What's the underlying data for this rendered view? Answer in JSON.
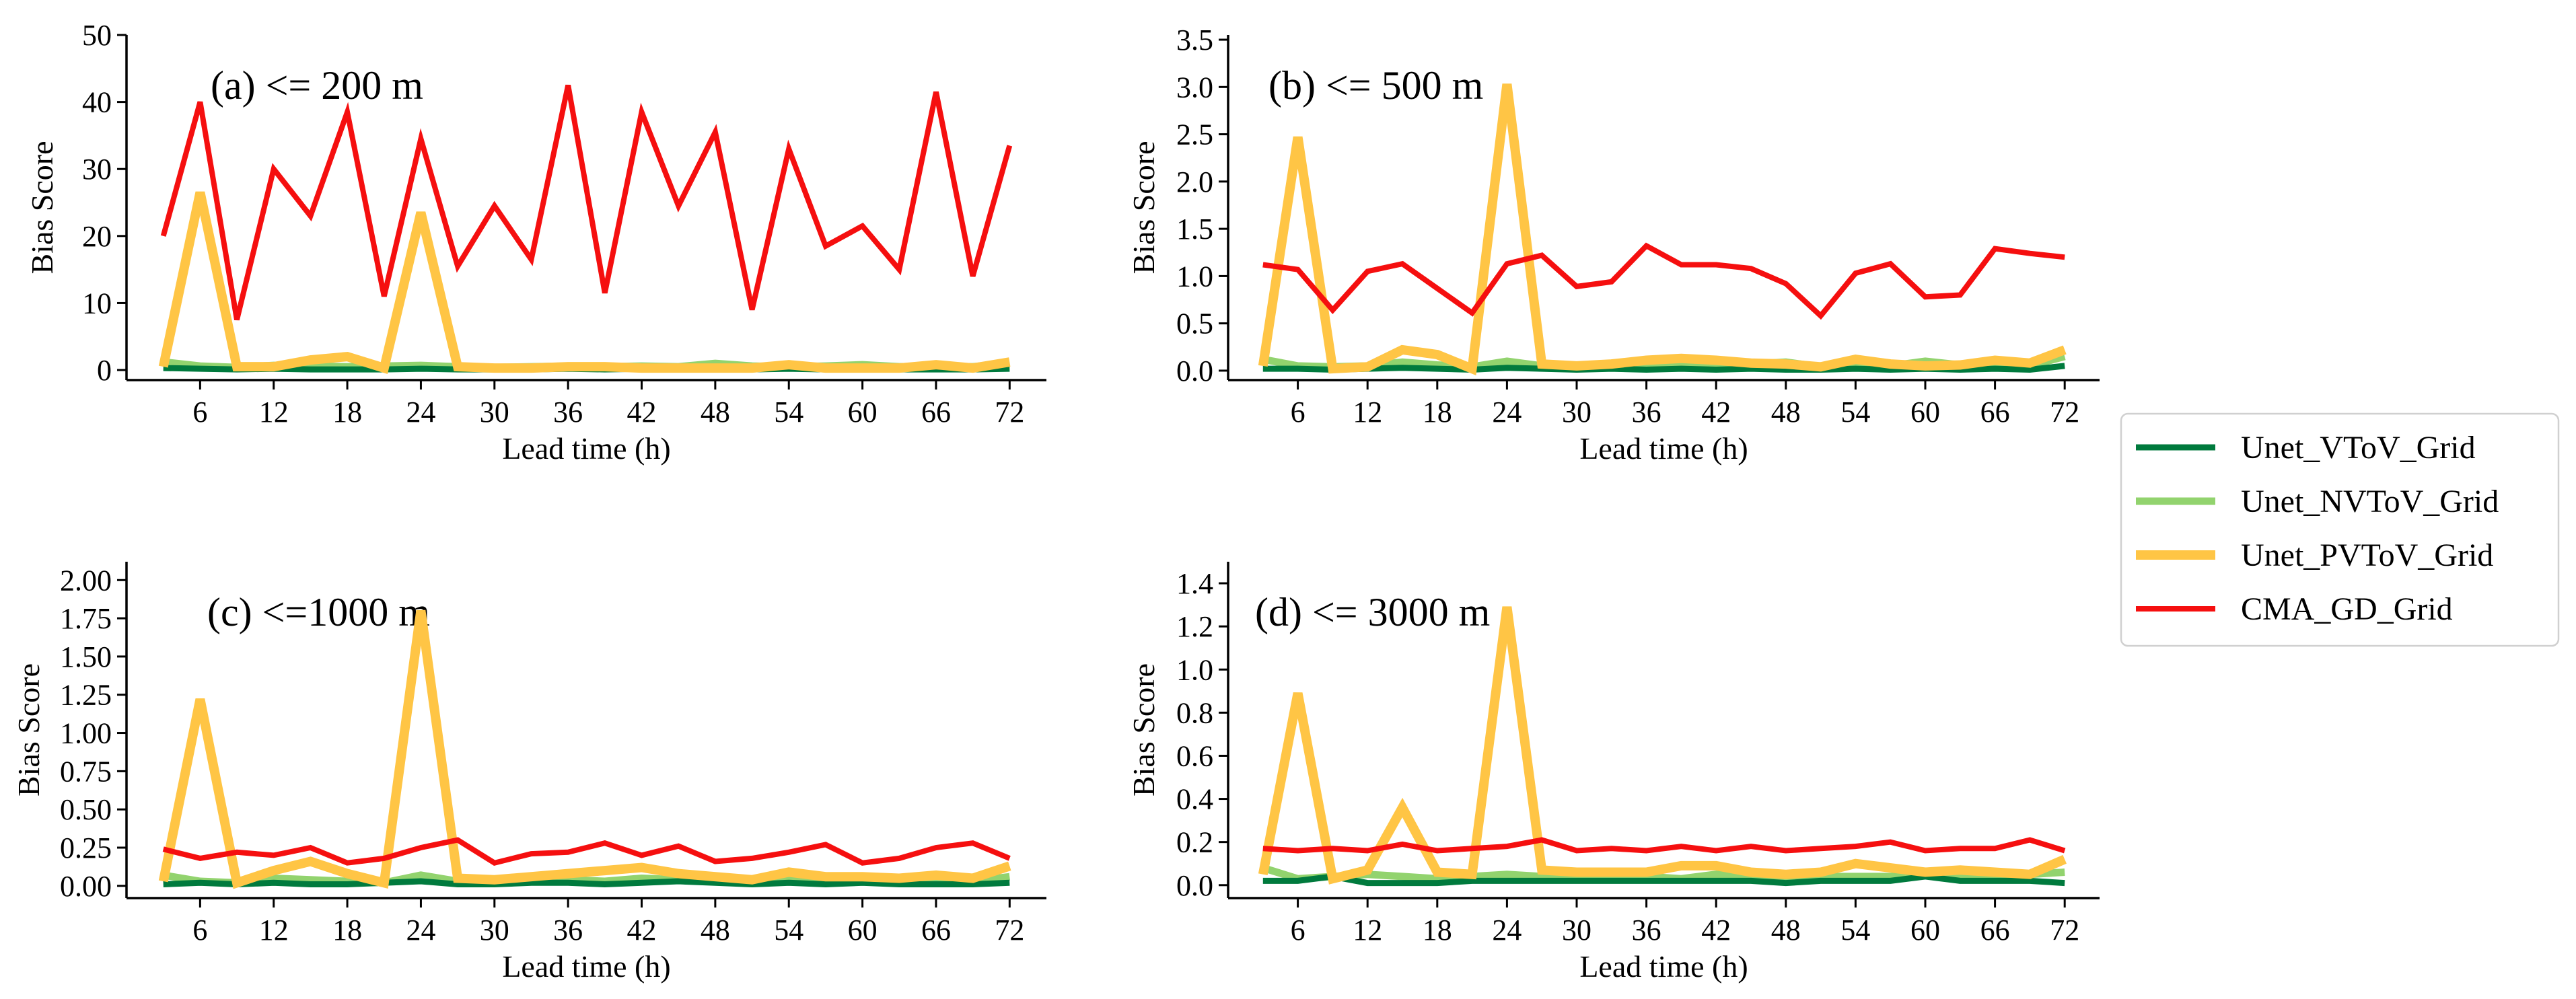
{
  "chart_data": [
    {
      "type": "line",
      "title": "(a) <= 200 m",
      "xlabel": "Lead time (h)",
      "ylabel": "Bias Score",
      "x": [
        3,
        6,
        9,
        12,
        15,
        18,
        21,
        24,
        27,
        30,
        33,
        36,
        39,
        42,
        45,
        48,
        51,
        54,
        57,
        60,
        63,
        66,
        69,
        72
      ],
      "xlim": [
        0,
        75
      ],
      "ylim": [
        -1.5,
        50
      ],
      "xticks": [
        "6",
        "12",
        "18",
        "24",
        "30",
        "36",
        "42",
        "48",
        "54",
        "60",
        "66",
        "72"
      ],
      "yticks": [
        "0",
        "10",
        "20",
        "30",
        "40",
        "50"
      ],
      "series": [
        {
          "name": "Unet_VToV_Grid",
          "values": [
            0.3,
            0.2,
            0.1,
            0.2,
            0.1,
            0.1,
            0.1,
            0.2,
            0.1,
            0.1,
            0.1,
            0.2,
            0.1,
            0.2,
            0.1,
            0.1,
            0.1,
            0.2,
            0.1,
            0.1,
            0.1,
            0.1,
            0.1,
            0.2
          ]
        },
        {
          "name": "Unet_NVToV_Grid",
          "values": [
            1.2,
            0.6,
            0.4,
            0.7,
            0.6,
            0.5,
            0.6,
            0.7,
            0.5,
            0.4,
            0.5,
            0.6,
            0.5,
            0.6,
            0.5,
            1.0,
            0.6,
            0.5,
            0.6,
            0.8,
            0.5,
            0.6,
            0.5,
            1.0
          ]
        },
        {
          "name": "Unet_PVToV_Grid",
          "values": [
            0.5,
            26.5,
            0.5,
            0.5,
            1.5,
            2.0,
            0.3,
            23.5,
            0.5,
            0.3,
            0.3,
            0.5,
            0.5,
            0.3,
            0.3,
            0.3,
            0.3,
            0.8,
            0.3,
            0.3,
            0.3,
            0.8,
            0.3,
            1.2
          ]
        },
        {
          "name": "CMA_GD_Grid",
          "values": [
            20,
            40,
            7.5,
            30,
            23,
            38.5,
            11,
            34.5,
            15.5,
            24.5,
            16.5,
            42.5,
            11.5,
            38.5,
            24.5,
            35.5,
            9,
            33,
            18.5,
            21.5,
            15,
            41.5,
            14,
            33.5
          ]
        }
      ]
    },
    {
      "type": "line",
      "title": "(b) <= 500 m",
      "xlabel": "Lead time (h)",
      "ylabel": "Bias Score",
      "x": [
        3,
        6,
        9,
        12,
        15,
        18,
        21,
        24,
        27,
        30,
        33,
        36,
        39,
        42,
        45,
        48,
        51,
        54,
        57,
        60,
        63,
        66,
        69,
        72
      ],
      "xlim": [
        0,
        75
      ],
      "ylim": [
        -0.1,
        3.55
      ],
      "xticks": [
        "6",
        "12",
        "18",
        "24",
        "30",
        "36",
        "42",
        "48",
        "54",
        "60",
        "66",
        "72"
      ],
      "yticks": [
        "0.0",
        "0.5",
        "1.0",
        "1.5",
        "2.0",
        "2.5",
        "3.0",
        "3.5"
      ],
      "series": [
        {
          "name": "Unet_VToV_Grid",
          "values": [
            0.02,
            0.02,
            0.01,
            0.02,
            0.03,
            0.02,
            0.01,
            0.03,
            0.02,
            0.01,
            0.02,
            0.01,
            0.02,
            0.01,
            0.02,
            0.01,
            0.01,
            0.02,
            0.01,
            0.02,
            0.01,
            0.02,
            0.01,
            0.05
          ]
        },
        {
          "name": "Unet_NVToV_Grid",
          "values": [
            0.12,
            0.05,
            0.04,
            0.05,
            0.09,
            0.06,
            0.04,
            0.1,
            0.05,
            0.05,
            0.05,
            0.07,
            0.06,
            0.06,
            0.07,
            0.09,
            0.04,
            0.06,
            0.05,
            0.1,
            0.06,
            0.08,
            0.05,
            0.15
          ]
        },
        {
          "name": "Unet_PVToV_Grid",
          "values": [
            0.05,
            2.47,
            0.02,
            0.04,
            0.22,
            0.17,
            0.02,
            3.03,
            0.07,
            0.05,
            0.07,
            0.11,
            0.13,
            0.11,
            0.08,
            0.07,
            0.04,
            0.12,
            0.07,
            0.05,
            0.06,
            0.11,
            0.08,
            0.22
          ]
        },
        {
          "name": "CMA_GD_Grid",
          "values": [
            1.12,
            1.07,
            0.64,
            1.05,
            1.13,
            0.87,
            0.61,
            1.13,
            1.22,
            0.89,
            0.94,
            1.32,
            1.12,
            1.12,
            1.08,
            0.92,
            0.58,
            1.03,
            1.13,
            0.78,
            0.8,
            1.29,
            1.24,
            1.2
          ]
        }
      ]
    },
    {
      "type": "line",
      "title": "(c) <=1000 m",
      "xlabel": "Lead time (h)",
      "ylabel": "Bias Score",
      "x": [
        3,
        6,
        9,
        12,
        15,
        18,
        21,
        24,
        27,
        30,
        33,
        36,
        39,
        42,
        45,
        48,
        51,
        54,
        57,
        60,
        63,
        66,
        69,
        72
      ],
      "xlim": [
        0,
        75
      ],
      "ylim": [
        -0.08,
        2.12
      ],
      "xticks": [
        "6",
        "12",
        "18",
        "24",
        "30",
        "36",
        "42",
        "48",
        "54",
        "60",
        "66",
        "72"
      ],
      "yticks": [
        "0.00",
        "0.25",
        "0.50",
        "0.75",
        "1.00",
        "1.25",
        "1.50",
        "1.75",
        "2.00"
      ],
      "series": [
        {
          "name": "Unet_VToV_Grid",
          "values": [
            0.01,
            0.02,
            0.01,
            0.02,
            0.01,
            0.01,
            0.02,
            0.03,
            0.01,
            0.01,
            0.02,
            0.02,
            0.01,
            0.02,
            0.03,
            0.02,
            0.01,
            0.02,
            0.01,
            0.02,
            0.01,
            0.01,
            0.01,
            0.02
          ]
        },
        {
          "name": "Unet_NVToV_Grid",
          "values": [
            0.07,
            0.03,
            0.02,
            0.05,
            0.04,
            0.03,
            0.02,
            0.07,
            0.03,
            0.03,
            0.04,
            0.04,
            0.03,
            0.05,
            0.04,
            0.03,
            0.03,
            0.04,
            0.03,
            0.05,
            0.03,
            0.04,
            0.03,
            0.06
          ]
        },
        {
          "name": "Unet_PVToV_Grid",
          "values": [
            0.03,
            1.22,
            0.02,
            0.1,
            0.16,
            0.08,
            0.02,
            1.8,
            0.05,
            0.04,
            0.06,
            0.08,
            0.1,
            0.12,
            0.08,
            0.06,
            0.04,
            0.09,
            0.06,
            0.06,
            0.05,
            0.07,
            0.05,
            0.13
          ]
        },
        {
          "name": "CMA_GD_Grid",
          "values": [
            0.24,
            0.18,
            0.22,
            0.2,
            0.25,
            0.15,
            0.18,
            0.25,
            0.3,
            0.15,
            0.21,
            0.22,
            0.28,
            0.2,
            0.26,
            0.16,
            0.18,
            0.22,
            0.27,
            0.15,
            0.18,
            0.25,
            0.28,
            0.18
          ]
        }
      ]
    },
    {
      "type": "line",
      "title": "(d) <= 3000 m",
      "xlabel": "Lead time (h)",
      "ylabel": "Bias Score",
      "x": [
        3,
        6,
        9,
        12,
        15,
        18,
        21,
        24,
        27,
        30,
        33,
        36,
        39,
        42,
        45,
        48,
        51,
        54,
        57,
        60,
        63,
        66,
        69,
        72
      ],
      "xlim": [
        0,
        75
      ],
      "ylim": [
        -0.06,
        1.5
      ],
      "xticks": [
        "6",
        "12",
        "18",
        "24",
        "30",
        "36",
        "42",
        "48",
        "54",
        "60",
        "66",
        "72"
      ],
      "yticks": [
        "0.0",
        "0.2",
        "0.4",
        "0.6",
        "0.8",
        "1.0",
        "1.2",
        "1.4"
      ],
      "series": [
        {
          "name": "Unet_VToV_Grid",
          "values": [
            0.02,
            0.02,
            0.04,
            0.01,
            0.01,
            0.01,
            0.02,
            0.02,
            0.02,
            0.02,
            0.02,
            0.02,
            0.02,
            0.02,
            0.02,
            0.01,
            0.02,
            0.02,
            0.02,
            0.04,
            0.02,
            0.02,
            0.02,
            0.01
          ]
        },
        {
          "name": "Unet_NVToV_Grid",
          "values": [
            0.08,
            0.03,
            0.04,
            0.05,
            0.04,
            0.03,
            0.04,
            0.05,
            0.04,
            0.04,
            0.04,
            0.04,
            0.03,
            0.05,
            0.04,
            0.03,
            0.04,
            0.04,
            0.04,
            0.06,
            0.05,
            0.05,
            0.05,
            0.06
          ]
        },
        {
          "name": "Unet_PVToV_Grid",
          "values": [
            0.05,
            0.89,
            0.03,
            0.07,
            0.36,
            0.06,
            0.05,
            1.29,
            0.07,
            0.06,
            0.06,
            0.06,
            0.09,
            0.09,
            0.06,
            0.05,
            0.06,
            0.1,
            0.08,
            0.06,
            0.07,
            0.06,
            0.05,
            0.12
          ]
        },
        {
          "name": "CMA_GD_Grid",
          "values": [
            0.17,
            0.16,
            0.17,
            0.16,
            0.19,
            0.16,
            0.17,
            0.18,
            0.21,
            0.16,
            0.17,
            0.16,
            0.18,
            0.16,
            0.18,
            0.16,
            0.17,
            0.18,
            0.2,
            0.16,
            0.17,
            0.17,
            0.21,
            0.16
          ]
        }
      ]
    }
  ],
  "legend": {
    "placement": "right",
    "entries": [
      {
        "label": "Unet_VToV_Grid",
        "color": "#007a3d"
      },
      {
        "label": "Unet_NVToV_Grid",
        "color": "#92d36e"
      },
      {
        "label": "Unet_PVToV_Grid",
        "color": "#ffc545"
      },
      {
        "label": "CMA_GD_Grid",
        "color": "#f50f0f"
      }
    ]
  }
}
